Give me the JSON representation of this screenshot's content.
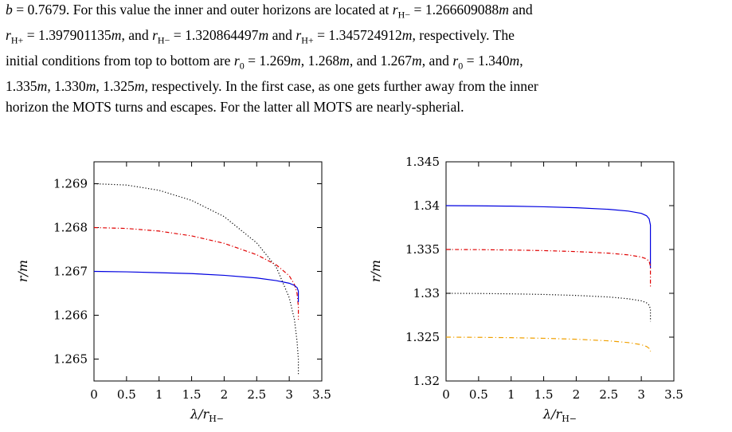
{
  "paragraph": [
    "b = 0.7679. For this value the inner and outer horizons are located at r_{H−} = 1.266609088m and",
    "r_{H+} = 1.397901135m, and r_{H−} = 1.320864497m and r_{H+} = 1.345724912m, respectively. The",
    "initial conditions from top to bottom are r_0 = 1.269m, 1.268m, and 1.267m, and r_0 = 1.340m,",
    "1.335m, 1.330m, 1.325m, respectively. In the first case, as one gets further away from the inner",
    "horizon the MOTS turns and escapes. For the latter all MOTS are nearly-spherial."
  ],
  "chart_data": [
    {
      "type": "line",
      "xlabel": "λ/r_{H−}",
      "ylabel": "r/m",
      "xlim": [
        0,
        3.5
      ],
      "ylim": [
        1.2645,
        1.2695
      ],
      "xticks": [
        "0",
        "0.5",
        "1",
        "1.5",
        "2",
        "2.5",
        "3",
        "3.5"
      ],
      "yticks": [
        "1.265",
        "1.266",
        "1.267",
        "1.268",
        "1.269"
      ],
      "series": [
        {
          "color": "#000000",
          "dash": "1.2 2.4",
          "x": [
            0,
            0.5,
            1.0,
            1.5,
            2.0,
            2.5,
            2.8,
            3.0,
            3.08,
            3.12,
            3.14,
            3.14
          ],
          "y": [
            1.269,
            1.26897,
            1.26885,
            1.26862,
            1.26825,
            1.26765,
            1.2671,
            1.2664,
            1.2659,
            1.2654,
            1.265,
            1.26465
          ]
        },
        {
          "color": "#e00000",
          "dash": "5 2.5 1.2 2.5",
          "x": [
            0,
            0.5,
            1.0,
            1.5,
            2.0,
            2.5,
            2.8,
            3.0,
            3.08,
            3.12,
            3.14,
            3.14
          ],
          "y": [
            1.268,
            1.26798,
            1.26792,
            1.26781,
            1.26764,
            1.26738,
            1.26715,
            1.2669,
            1.2667,
            1.2665,
            1.2662,
            1.2659
          ]
        },
        {
          "color": "#0000e0",
          "dash": "",
          "x": [
            0,
            0.5,
            1.0,
            1.5,
            2.0,
            2.5,
            2.8,
            3.0,
            3.08,
            3.12,
            3.14,
            3.14
          ],
          "y": [
            1.267,
            1.26699,
            1.26697,
            1.26695,
            1.26691,
            1.26685,
            1.26679,
            1.26673,
            1.26668,
            1.26663,
            1.26655,
            1.2663
          ]
        }
      ]
    },
    {
      "type": "line",
      "xlabel": "λ/r_{H−}",
      "ylabel": "r/m",
      "xlim": [
        0,
        3.5
      ],
      "ylim": [
        1.32,
        1.345
      ],
      "xticks": [
        "0",
        "0.5",
        "1",
        "1.5",
        "2",
        "2.5",
        "3",
        "3.5"
      ],
      "yticks": [
        "1.32",
        "1.325",
        "1.33",
        "1.335",
        "1.34",
        "1.345"
      ],
      "series": [
        {
          "color": "#0000e0",
          "dash": "",
          "x": [
            0,
            0.5,
            1.0,
            1.5,
            2.0,
            2.5,
            2.8,
            3.0,
            3.08,
            3.12,
            3.14,
            3.14
          ],
          "y": [
            1.34,
            1.33998,
            1.33994,
            1.33987,
            1.33976,
            1.33958,
            1.33938,
            1.33912,
            1.33885,
            1.3385,
            1.3378,
            1.3329
          ]
        },
        {
          "color": "#e00000",
          "dash": "5 2.5 1.2 2.5",
          "x": [
            0,
            0.5,
            1.0,
            1.5,
            2.0,
            2.5,
            2.8,
            3.0,
            3.08,
            3.12,
            3.14,
            3.14
          ],
          "y": [
            1.335,
            1.33498,
            1.33494,
            1.33487,
            1.33476,
            1.33458,
            1.33438,
            1.33414,
            1.33392,
            1.33365,
            1.3331,
            1.3306
          ]
        },
        {
          "color": "#000000",
          "dash": "1.2 2.4",
          "x": [
            0,
            0.5,
            1.0,
            1.5,
            2.0,
            2.5,
            2.8,
            3.0,
            3.08,
            3.12,
            3.14,
            3.14
          ],
          "y": [
            1.33,
            1.32998,
            1.32994,
            1.32987,
            1.32976,
            1.32958,
            1.32938,
            1.32914,
            1.32892,
            1.32865,
            1.3282,
            1.3268
          ]
        },
        {
          "color": "#f0a000",
          "dash": "6 3 1.2 3",
          "x": [
            0,
            0.5,
            1.0,
            1.5,
            2.0,
            2.5,
            2.8,
            3.0,
            3.08,
            3.12,
            3.14,
            3.14
          ],
          "y": [
            1.325,
            1.32498,
            1.32494,
            1.32487,
            1.32476,
            1.32458,
            1.32438,
            1.32414,
            1.32394,
            1.32372,
            1.3234,
            1.3236
          ]
        }
      ]
    }
  ]
}
